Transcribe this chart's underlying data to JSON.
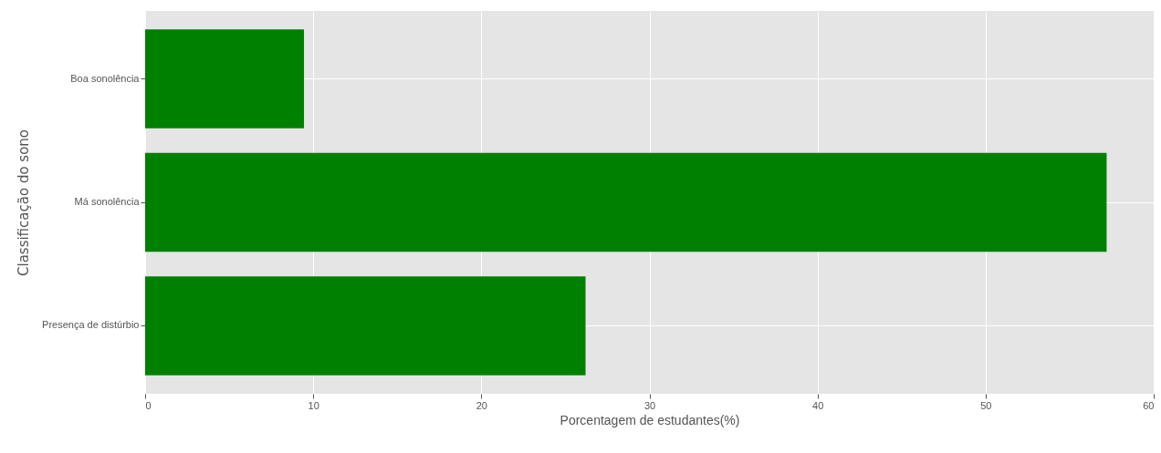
{
  "chart_data": {
    "type": "bar",
    "orientation": "horizontal",
    "categories": [
      "Boa sonolência",
      "Má sonolência",
      "Presença de distúrbio"
    ],
    "values": [
      9.45,
      57.2,
      26.2
    ],
    "color": "#008000",
    "xlabel": "Porcentagem de estudantes(%)",
    "ylabel": "Classificação do sono",
    "xlim": [
      0,
      60
    ],
    "xticks": [
      0,
      10,
      20,
      30,
      40,
      50,
      60
    ],
    "grid": true
  }
}
